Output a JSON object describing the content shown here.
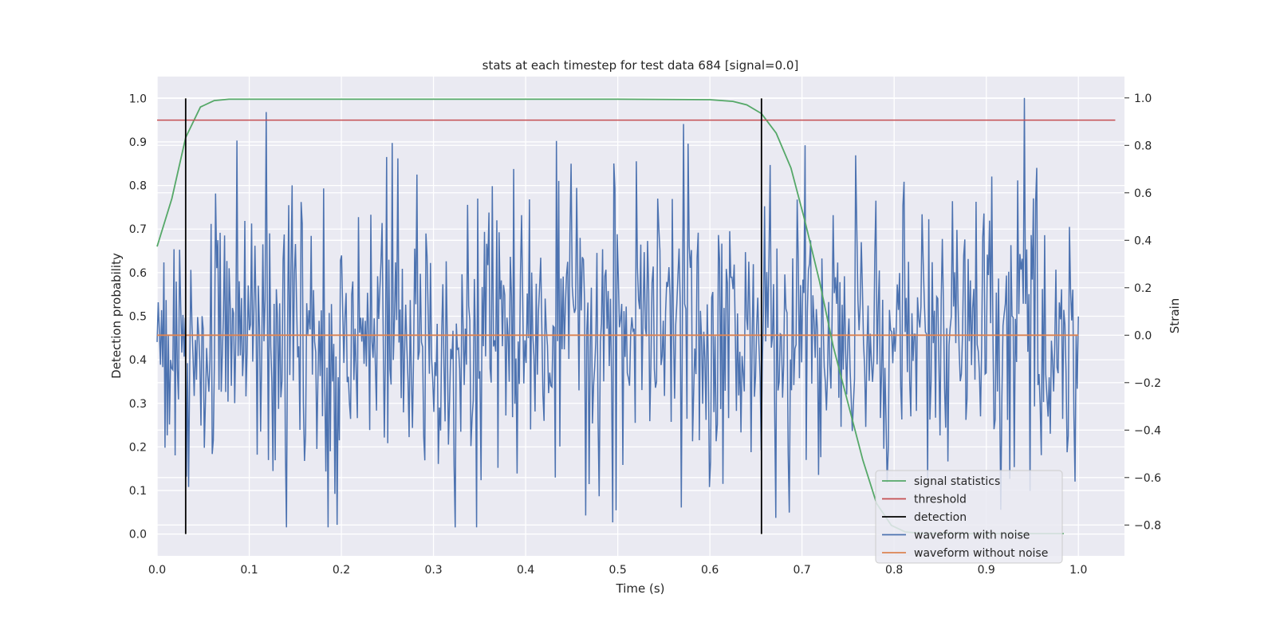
{
  "chart_data": {
    "type": "line",
    "title": "stats at each timestep for test data 684 [signal=0.0]",
    "xlabel": "Time (s)",
    "ylabel": "Detection probability",
    "y2label": "Strain",
    "xlim": [
      0.0,
      1.05
    ],
    "ylim": [
      -0.05,
      1.05
    ],
    "y2lim": [
      -0.93,
      1.09
    ],
    "xticks": [
      "0.0",
      "0.1",
      "0.2",
      "0.3",
      "0.4",
      "0.5",
      "0.6",
      "0.7",
      "0.8",
      "0.9",
      "1.0"
    ],
    "yticks": [
      "0.0",
      "0.1",
      "0.2",
      "0.3",
      "0.4",
      "0.5",
      "0.6",
      "0.7",
      "0.8",
      "0.9",
      "1.0"
    ],
    "y2ticks": [
      "−0.8",
      "−0.6",
      "−0.4",
      "−0.2",
      "0.0",
      "0.2",
      "0.4",
      "0.6",
      "0.8",
      "1.0"
    ],
    "grid": true,
    "legend_position": "lower-right",
    "colors": {
      "signal_statistics": "#55a868",
      "threshold": "#c44e52",
      "detection": "#000000",
      "waveform_with_noise": "#4c72b0",
      "waveform_without_noise": "#dd8452",
      "plot_background": "#eaeaf2"
    },
    "legend": [
      {
        "key": "signal_statistics",
        "label": "signal statistics"
      },
      {
        "key": "threshold",
        "label": "threshold"
      },
      {
        "key": "detection",
        "label": "detection"
      },
      {
        "key": "waveform_with_noise",
        "label": "waveform with noise"
      },
      {
        "key": "waveform_without_noise",
        "label": "waveform without noise"
      }
    ],
    "series": {
      "signal_statistics": {
        "axis": "left",
        "x": [
          0.0,
          0.016,
          0.031,
          0.047,
          0.062,
          0.078,
          0.1,
          0.2,
          0.3,
          0.4,
          0.5,
          0.6,
          0.625,
          0.64,
          0.656,
          0.672,
          0.688,
          0.703,
          0.719,
          0.734,
          0.75,
          0.766,
          0.781,
          0.797,
          0.812,
          0.828,
          0.844,
          0.9,
          0.95,
          0.984
        ],
        "y": [
          0.66,
          0.77,
          0.91,
          0.98,
          0.995,
          0.998,
          0.998,
          0.998,
          0.998,
          0.998,
          0.998,
          0.997,
          0.993,
          0.985,
          0.965,
          0.92,
          0.84,
          0.72,
          0.58,
          0.43,
          0.3,
          0.17,
          0.07,
          0.02,
          0.005,
          0.002,
          0.001,
          0.001,
          0.001,
          0.001
        ]
      },
      "threshold": {
        "axis": "left",
        "x": [
          0.0,
          1.04
        ],
        "y": [
          0.95,
          0.95
        ]
      },
      "detection": {
        "axis": "left",
        "events": [
          0.031,
          0.656
        ],
        "y_range": [
          0.0,
          1.0
        ]
      },
      "waveform_with_noise": {
        "axis": "right",
        "x_range": [
          0.0,
          1.0
        ],
        "n_points": 820,
        "y_range": [
          -0.81,
          1.0
        ],
        "std": 0.29,
        "seed": 684,
        "peaks": [
          {
            "x": 0.942,
            "y": 1.0
          },
          {
            "x": 0.571,
            "y": 0.89
          },
          {
            "x": 0.087,
            "y": 0.82
          },
          {
            "x": 0.186,
            "y": -0.81
          },
          {
            "x": 0.465,
            "y": -0.76
          },
          {
            "x": 0.672,
            "y": -0.77
          }
        ]
      },
      "waveform_without_noise": {
        "axis": "right",
        "x": [
          0.0,
          1.0
        ],
        "y": [
          0.0,
          0.0
        ]
      }
    }
  }
}
